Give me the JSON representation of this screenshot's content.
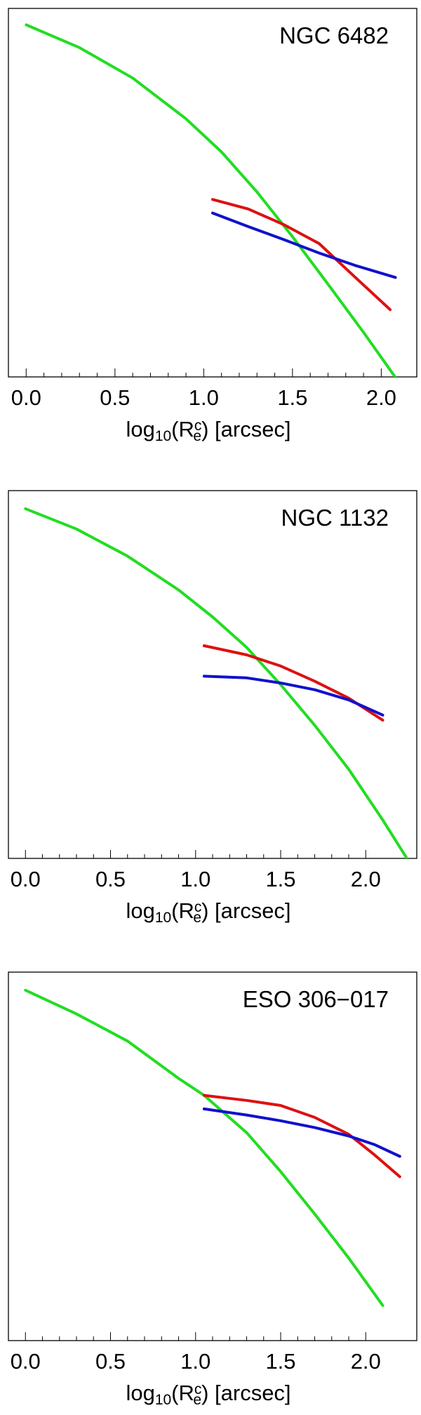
{
  "chart_data": [
    {
      "type": "line",
      "title": "NGC 6482",
      "xlabel": {
        "pre": "log",
        "sub": "10",
        "mid": "(R",
        "sup": "c",
        "sub2": "e",
        "post": ") [arcsec]"
      },
      "xlim": [
        -0.1,
        2.2
      ],
      "ylim": [
        0,
        1
      ],
      "xticks": [
        "0.0",
        "0.5",
        "1.0",
        "1.5",
        "2.0"
      ],
      "series": [
        {
          "color": "#22dd22",
          "x": [
            0.0,
            0.3,
            0.6,
            0.9,
            1.1,
            1.3,
            1.5,
            1.7,
            1.9,
            2.1
          ],
          "y": [
            0.995,
            0.928,
            0.838,
            0.718,
            0.62,
            0.502,
            0.37,
            0.23,
            0.088,
            -0.06
          ]
        },
        {
          "color": "#dd1111",
          "x": [
            1.05,
            1.25,
            1.45,
            1.65,
            1.85,
            2.05
          ],
          "y": [
            0.48,
            0.452,
            0.406,
            0.35,
            0.252,
            0.155
          ]
        },
        {
          "color": "#1111cc",
          "x": [
            1.05,
            1.25,
            1.45,
            1.65,
            1.85,
            2.08
          ],
          "y": [
            0.44,
            0.4,
            0.362,
            0.322,
            0.286,
            0.25
          ]
        }
      ]
    },
    {
      "type": "line",
      "title": "NGC 1132",
      "xlabel": {
        "pre": "log",
        "sub": "10",
        "mid": "(R",
        "sup": "c",
        "sub2": "e",
        "post": ") [arcsec]"
      },
      "xlim": [
        -0.1,
        2.3
      ],
      "ylim": [
        0,
        1
      ],
      "xticks": [
        "0.0",
        "0.5",
        "1.0",
        "1.5",
        "2.0"
      ],
      "series": [
        {
          "color": "#22dd22",
          "x": [
            0.0,
            0.3,
            0.6,
            0.9,
            1.1,
            1.3,
            1.5,
            1.7,
            1.9,
            2.1,
            2.25
          ],
          "y": [
            0.99,
            0.93,
            0.85,
            0.75,
            0.67,
            0.58,
            0.47,
            0.35,
            0.22,
            0.07,
            -0.05
          ]
        },
        {
          "color": "#dd1111",
          "x": [
            1.05,
            1.3,
            1.5,
            1.7,
            1.9,
            2.1
          ],
          "y": [
            0.585,
            0.558,
            0.525,
            0.48,
            0.43,
            0.365
          ]
        },
        {
          "color": "#1111cc",
          "x": [
            1.05,
            1.3,
            1.5,
            1.7,
            1.9,
            2.1
          ],
          "y": [
            0.495,
            0.49,
            0.475,
            0.455,
            0.425,
            0.38
          ]
        }
      ]
    },
    {
      "type": "line",
      "title": "ESO 306−017",
      "xlabel": {
        "pre": "log",
        "sub": "10",
        "mid": "(R",
        "sup": "c",
        "sub2": "e",
        "post": ") [arcsec]"
      },
      "xlim": [
        -0.1,
        2.3
      ],
      "ylim": [
        0,
        1
      ],
      "xticks": [
        "0.0",
        "0.5",
        "1.0",
        "1.5",
        "2.0"
      ],
      "series": [
        {
          "color": "#22dd22",
          "x": [
            0.0,
            0.3,
            0.6,
            0.9,
            1.05,
            1.3,
            1.5,
            1.7,
            1.9,
            2.1
          ],
          "y": [
            0.99,
            0.92,
            0.84,
            0.73,
            0.68,
            0.57,
            0.455,
            0.33,
            0.2,
            0.06
          ]
        },
        {
          "color": "#dd1111",
          "x": [
            1.05,
            1.3,
            1.5,
            1.7,
            1.9,
            2.05,
            2.2
          ],
          "y": [
            0.68,
            0.665,
            0.65,
            0.615,
            0.565,
            0.505,
            0.44
          ]
        },
        {
          "color": "#1111cc",
          "x": [
            1.05,
            1.3,
            1.5,
            1.7,
            1.9,
            2.05,
            2.2
          ],
          "y": [
            0.64,
            0.622,
            0.605,
            0.585,
            0.56,
            0.535,
            0.5
          ]
        }
      ]
    }
  ]
}
